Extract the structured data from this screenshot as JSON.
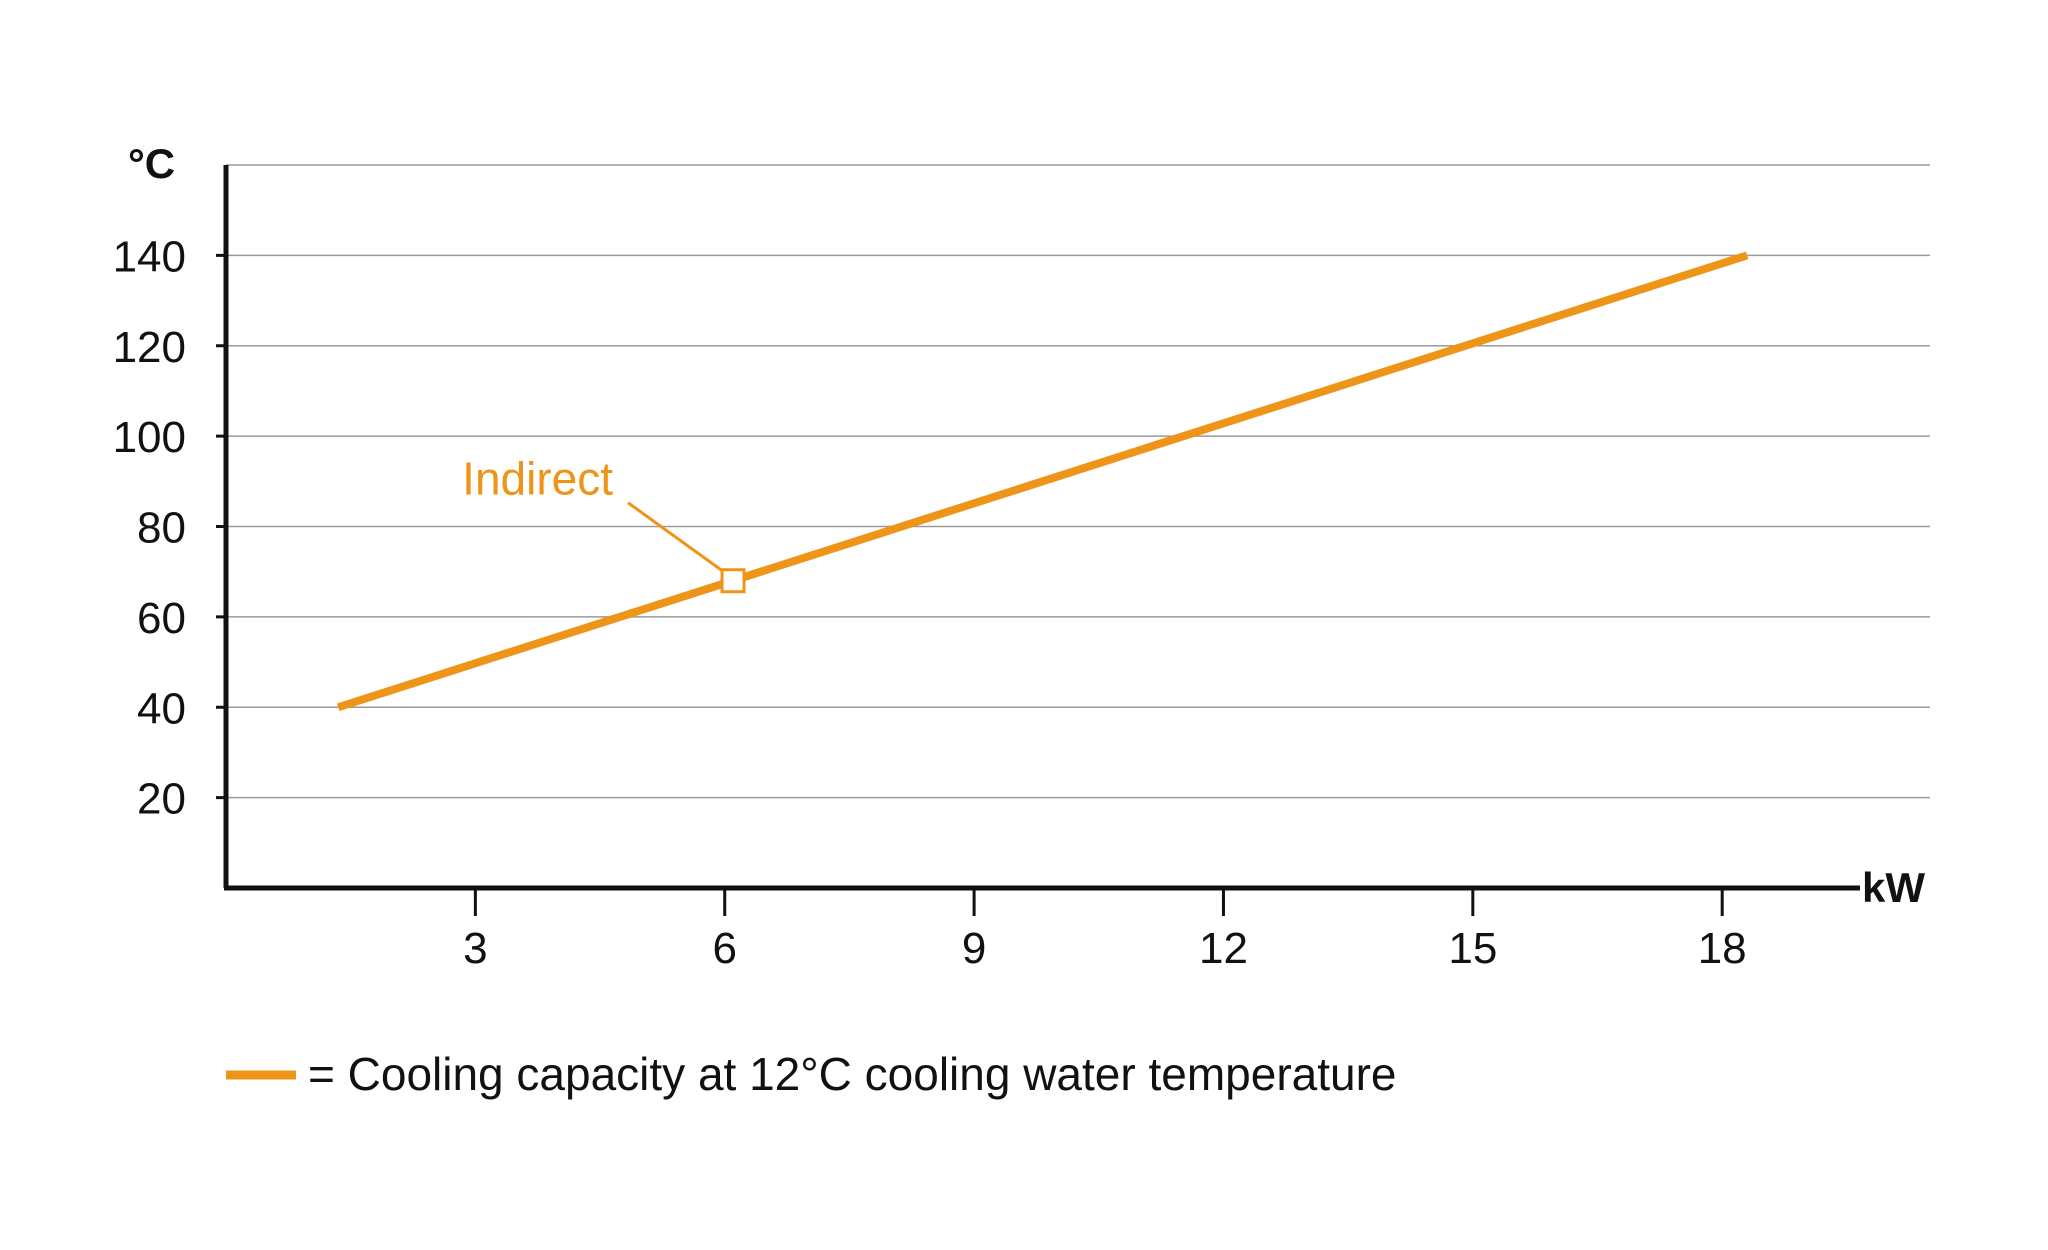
{
  "chart_data": {
    "type": "line",
    "xlabel": "kW",
    "ylabel": "°C",
    "xlim": [
      0,
      20.5
    ],
    "ylim": [
      0,
      160
    ],
    "x_ticks": [
      3,
      6,
      9,
      12,
      15,
      18
    ],
    "y_ticks": [
      20,
      40,
      60,
      80,
      100,
      120,
      140
    ],
    "grid": "horizontal",
    "series": [
      {
        "name": "= Cooling capacity at 12°C cooling water temperature",
        "color": "#EE9418",
        "x": [
          1.35,
          18.3
        ],
        "y": [
          40,
          140
        ]
      }
    ],
    "annotations": [
      {
        "text": "Indirect",
        "x": 6.1,
        "y": 68,
        "marker": "open-square",
        "color": "#EE9418"
      }
    ],
    "legend": {
      "position": "bottom-left",
      "label": "= Cooling capacity at 12°C cooling water temperature"
    }
  }
}
